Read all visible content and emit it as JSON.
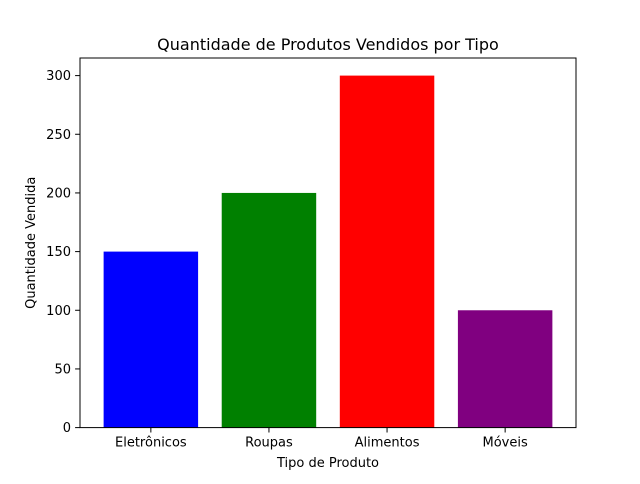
{
  "chart_data": {
    "type": "bar",
    "title": "Quantidade de Produtos Vendidos por Tipo",
    "xlabel": "Tipo de Produto",
    "ylabel": "Quantidade Vendida",
    "categories": [
      "Eletrônicos",
      "Roupas",
      "Alimentos",
      "Móveis"
    ],
    "values": [
      150,
      200,
      300,
      100
    ],
    "colors": [
      "#0000ff",
      "#008000",
      "#ff0000",
      "#800080"
    ],
    "ylim": [
      0,
      315
    ],
    "yticks": [
      0,
      50,
      100,
      150,
      200,
      250,
      300
    ],
    "grid": false,
    "legend": "none"
  }
}
